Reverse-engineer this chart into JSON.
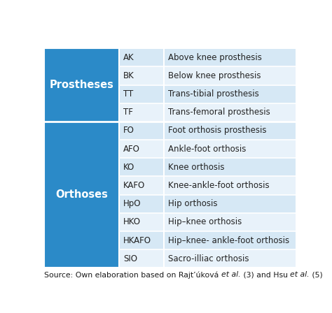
{
  "prostheses_label": "Prostheses",
  "orthoses_label": "Orthoses",
  "prostheses_rows": [
    [
      "AK",
      "Above knee prosthesis"
    ],
    [
      "BK",
      "Below knee prosthesis"
    ],
    [
      "TT",
      "Trans-tibial prosthesis"
    ],
    [
      "TF",
      "Trans-femoral prosthesis"
    ]
  ],
  "orthoses_rows": [
    [
      "FO",
      "Foot orthosis prosthesis"
    ],
    [
      "AFO",
      "Ankle-foot orthosis"
    ],
    [
      "KO",
      "Knee orthosis"
    ],
    [
      "KAFO",
      "Knee-ankle-foot orthosis"
    ],
    [
      "HpO",
      "Hip orthosis"
    ],
    [
      "HKO",
      "Hip–knee orthosis"
    ],
    [
      "HKAFO",
      "Hip–knee- ankle-foot orthosis"
    ],
    [
      "SIO",
      "Sacro-illiac orthosis"
    ]
  ],
  "header_bg_color": "#2B8AC8",
  "header_text_color": "#FFFFFF",
  "row_bg_color_light": "#D6E8F5",
  "row_bg_color_alt": "#E8F2FA",
  "border_color": "#FFFFFF",
  "text_color_dark": "#222222",
  "caption_parts": [
    [
      "Source: Own elaboration based on Rajt’úková ",
      false
    ],
    [
      "et al.",
      true
    ],
    [
      " (3) and Hsu ",
      false
    ],
    [
      "et al.",
      true
    ],
    [
      " (5)",
      false
    ]
  ]
}
